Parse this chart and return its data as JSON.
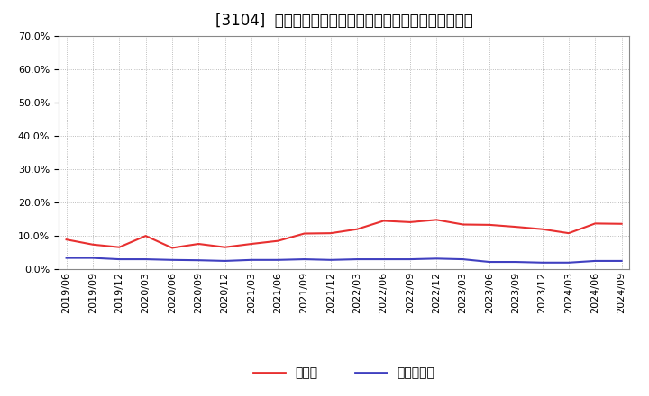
{
  "title": "[3104]  現預金、有利子負債の総資産に対する比率の推移",
  "x_labels": [
    "2019/06",
    "2019/09",
    "2019/12",
    "2020/03",
    "2020/06",
    "2020/09",
    "2020/12",
    "2021/03",
    "2021/06",
    "2021/09",
    "2021/12",
    "2022/03",
    "2022/06",
    "2022/09",
    "2022/12",
    "2023/03",
    "2023/06",
    "2023/09",
    "2023/12",
    "2024/03",
    "2024/06",
    "2024/09"
  ],
  "cash_ratio": [
    0.089,
    0.074,
    0.066,
    0.1,
    0.064,
    0.076,
    0.066,
    0.076,
    0.085,
    0.107,
    0.108,
    0.12,
    0.145,
    0.141,
    0.148,
    0.134,
    0.133,
    0.127,
    0.12,
    0.108,
    0.137,
    0.136
  ],
  "debt_ratio": [
    0.034,
    0.034,
    0.03,
    0.03,
    0.028,
    0.027,
    0.025,
    0.028,
    0.028,
    0.03,
    0.028,
    0.03,
    0.03,
    0.03,
    0.032,
    0.03,
    0.022,
    0.022,
    0.02,
    0.02,
    0.025,
    0.025
  ],
  "cash_color": "#e83030",
  "debt_color": "#4040c0",
  "background_color": "#ffffff",
  "grid_color": "#aaaaaa",
  "ylim": [
    0.0,
    0.7
  ],
  "yticks": [
    0.0,
    0.1,
    0.2,
    0.3,
    0.4,
    0.5,
    0.6,
    0.7
  ],
  "legend_cash": "現預金",
  "legend_debt": "有利子負債",
  "title_fontsize": 12,
  "legend_fontsize": 10,
  "tick_fontsize": 8
}
